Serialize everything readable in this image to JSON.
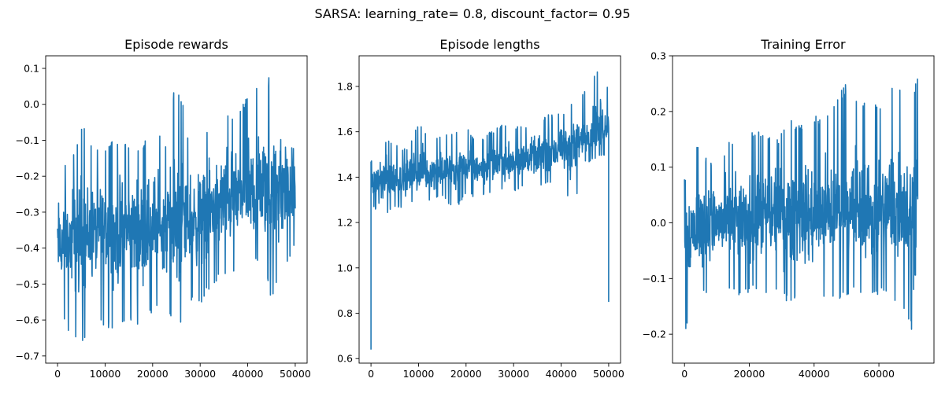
{
  "figure": {
    "suptitle": "SARSA: learning_rate= 0.8, discount_factor= 0.95"
  },
  "colors": {
    "series": "#1f77b4"
  },
  "chart_data": [
    {
      "type": "line",
      "title": "Episode rewards",
      "xlabel": "",
      "ylabel": "",
      "xlim": [
        -2500,
        52500
      ],
      "ylim": [
        -0.72,
        0.135
      ],
      "xticks": [
        0,
        10000,
        20000,
        30000,
        40000,
        50000
      ],
      "xtick_labels": [
        "0",
        "10000",
        "20000",
        "30000",
        "40000",
        "50000"
      ],
      "yticks": [
        -0.7,
        -0.6,
        -0.5,
        -0.4,
        -0.3,
        -0.2,
        -0.1,
        0.0,
        0.1
      ],
      "ytick_labels": [
        "−0.7",
        "−0.6",
        "−0.5",
        "−0.4",
        "−0.3",
        "−0.2",
        "−0.1",
        "0.0",
        "0.1"
      ],
      "grid": false,
      "series": [
        {
          "x": [
            0,
            2500,
            5000,
            7500,
            10000,
            12500,
            15000,
            17500,
            20000,
            22500,
            25000,
            27500,
            30000,
            32500,
            35000,
            37500,
            40000,
            42500,
            45000,
            47500,
            50000
          ],
          "y": [
            -0.4,
            -0.38,
            -0.37,
            -0.36,
            -0.35,
            -0.36,
            -0.35,
            -0.34,
            -0.34,
            -0.34,
            -0.33,
            -0.32,
            -0.31,
            -0.29,
            -0.27,
            -0.26,
            -0.25,
            -0.25,
            -0.24,
            -0.24,
            -0.25
          ],
          "upper": [
            -0.15,
            -0.17,
            -0.04,
            -0.12,
            -0.12,
            -0.09,
            -0.1,
            -0.12,
            -0.04,
            -0.12,
            0.1,
            -0.08,
            -0.1,
            -0.06,
            0.0,
            -0.03,
            0.03,
            0.07,
            0.08,
            0.03,
            -0.03
          ],
          "lower": [
            -0.55,
            -0.64,
            -0.67,
            -0.6,
            -0.62,
            -0.65,
            -0.6,
            -0.62,
            -0.58,
            -0.55,
            -0.66,
            -0.55,
            -0.57,
            -0.5,
            -0.48,
            -0.47,
            -0.45,
            -0.44,
            -0.54,
            -0.47,
            -0.4
          ]
        }
      ]
    },
    {
      "type": "line",
      "title": "Episode lengths",
      "xlabel": "",
      "ylabel": "",
      "xlim": [
        -2500,
        52500
      ],
      "ylim": [
        0.58,
        1.935
      ],
      "xticks": [
        0,
        10000,
        20000,
        30000,
        40000,
        50000
      ],
      "xtick_labels": [
        "0",
        "10000",
        "20000",
        "30000",
        "40000",
        "50000"
      ],
      "yticks": [
        0.6,
        0.8,
        1.0,
        1.2,
        1.4,
        1.6,
        1.8
      ],
      "ytick_labels": [
        "0.6",
        "0.8",
        "1.0",
        "1.2",
        "1.4",
        "1.6",
        "1.8"
      ],
      "grid": false,
      "series": [
        {
          "x": [
            0,
            2500,
            5000,
            7500,
            10000,
            12500,
            15000,
            17500,
            20000,
            22500,
            25000,
            27500,
            30000,
            32500,
            35000,
            37500,
            40000,
            42500,
            45000,
            47500,
            50000
          ],
          "y": [
            1.37,
            1.38,
            1.39,
            1.4,
            1.41,
            1.42,
            1.43,
            1.43,
            1.44,
            1.44,
            1.45,
            1.46,
            1.47,
            1.48,
            1.49,
            1.5,
            1.52,
            1.54,
            1.57,
            1.61,
            1.64
          ],
          "upper": [
            1.47,
            1.57,
            1.55,
            1.52,
            1.64,
            1.58,
            1.58,
            1.6,
            1.62,
            1.56,
            1.6,
            1.63,
            1.63,
            1.62,
            1.65,
            1.68,
            1.68,
            1.74,
            1.78,
            1.87,
            1.8
          ],
          "lower": [
            1.28,
            1.22,
            1.26,
            1.27,
            1.3,
            1.29,
            1.32,
            1.25,
            1.32,
            1.31,
            1.32,
            1.34,
            1.33,
            1.36,
            1.36,
            1.37,
            1.38,
            1.23,
            1.46,
            1.48,
            1.5
          ],
          "first_point": [
            0,
            0.64
          ],
          "last_point": [
            50000,
            0.85
          ]
        }
      ]
    },
    {
      "type": "line",
      "title": "Training Error",
      "xlabel": "",
      "ylabel": "",
      "xlim": [
        -3700,
        77000
      ],
      "ylim": [
        -0.252,
        0.3
      ],
      "xticks": [
        0,
        20000,
        40000,
        60000
      ],
      "xtick_labels": [
        "0",
        "20000",
        "40000",
        "60000"
      ],
      "yticks": [
        -0.2,
        -0.1,
        0.0,
        0.1,
        0.2,
        0.3
      ],
      "ytick_labels": [
        "−0.2",
        "−0.1",
        "0.0",
        "0.1",
        "0.2",
        "0.3"
      ],
      "grid": false,
      "series": [
        {
          "x": [
            0,
            3600,
            7200,
            10800,
            14400,
            18000,
            21600,
            25200,
            28800,
            32400,
            36000,
            39600,
            43200,
            46800,
            50400,
            54000,
            57600,
            61200,
            64800,
            68400,
            72000
          ],
          "y": [
            -0.02,
            -0.01,
            0.0,
            0.0,
            0.0,
            0.0,
            0.0,
            0.01,
            0.01,
            0.01,
            0.01,
            0.01,
            0.01,
            0.02,
            0.02,
            0.02,
            0.02,
            0.02,
            0.02,
            0.02,
            0.02
          ],
          "upper": [
            0.08,
            0.15,
            0.11,
            0.12,
            0.15,
            0.13,
            0.17,
            0.17,
            0.15,
            0.19,
            0.18,
            0.19,
            0.2,
            0.22,
            0.26,
            0.23,
            0.21,
            0.22,
            0.27,
            0.21,
            0.26
          ],
          "lower": [
            -0.2,
            -0.14,
            -0.13,
            -0.12,
            -0.13,
            -0.13,
            -0.12,
            -0.13,
            -0.12,
            -0.15,
            -0.13,
            -0.15,
            -0.14,
            -0.14,
            -0.13,
            -0.13,
            -0.14,
            -0.13,
            -0.15,
            -0.16,
            -0.23
          ]
        }
      ]
    }
  ]
}
